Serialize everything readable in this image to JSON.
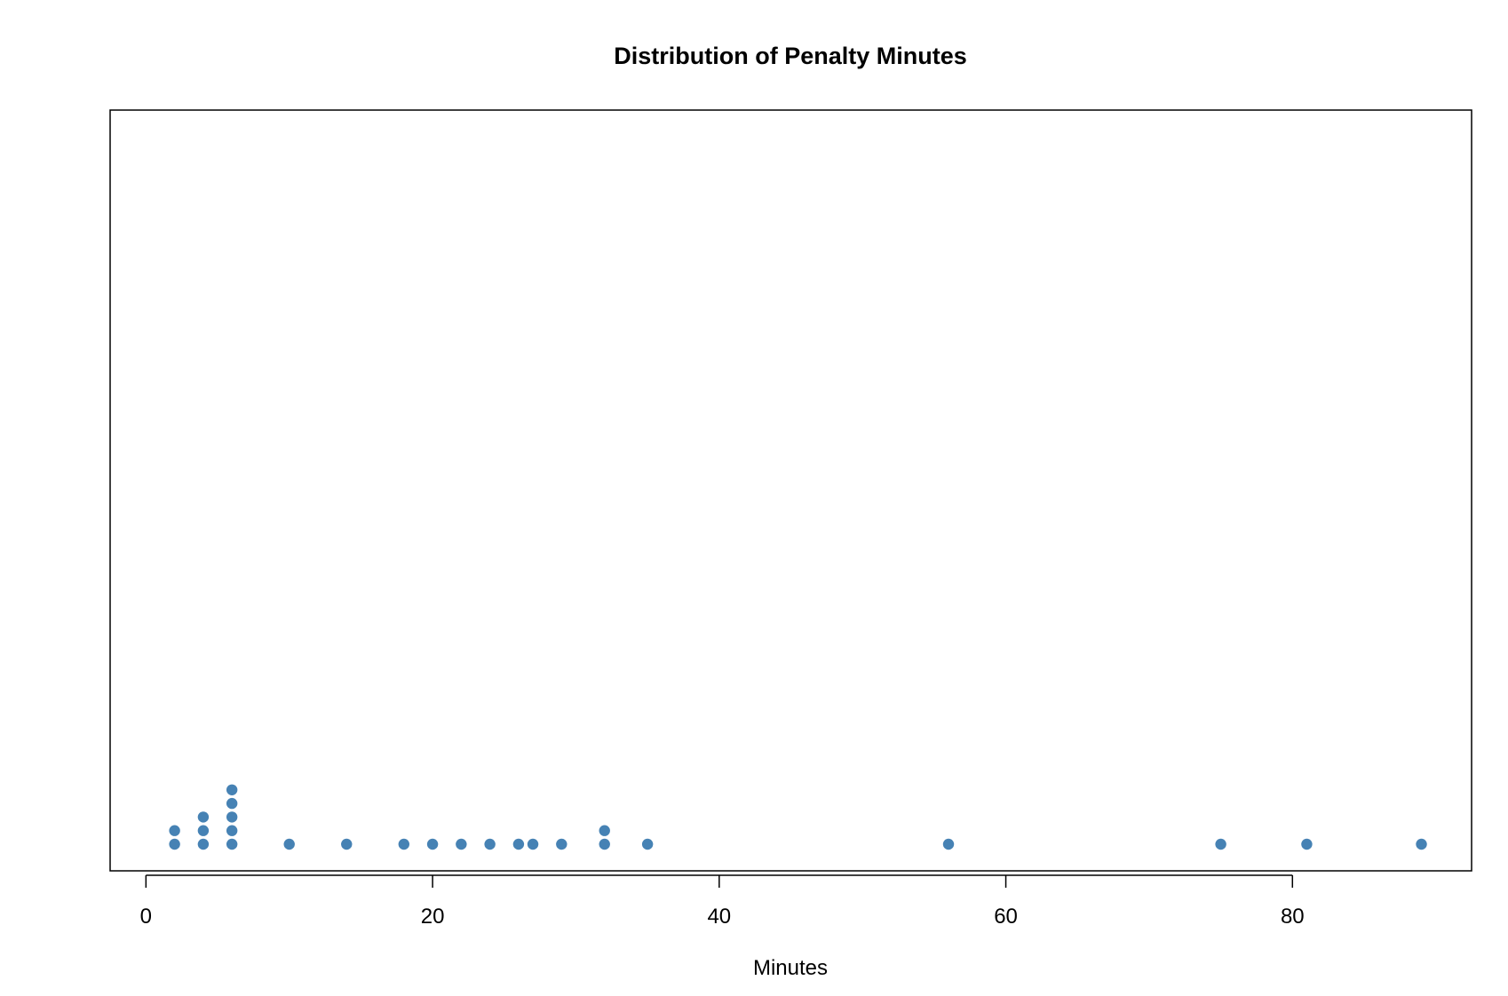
{
  "chart_data": {
    "type": "scatter",
    "subtype": "dot plot (stacked)",
    "title": "Distribution of Penalty Minutes",
    "xlabel": "Minutes",
    "ylabel": "",
    "xlim": [
      -2.5,
      92.5
    ],
    "xticks": [
      0,
      20,
      40,
      60,
      80
    ],
    "xtick_labels": [
      "0",
      "20",
      "40",
      "60",
      "80"
    ],
    "grid": false,
    "legend": "none",
    "point_color": "#4682B4",
    "values": [
      2,
      2,
      4,
      4,
      4,
      6,
      6,
      6,
      6,
      6,
      10,
      14,
      18,
      20,
      22,
      24,
      26,
      27,
      29,
      32,
      32,
      35,
      56,
      75,
      81,
      89
    ]
  }
}
